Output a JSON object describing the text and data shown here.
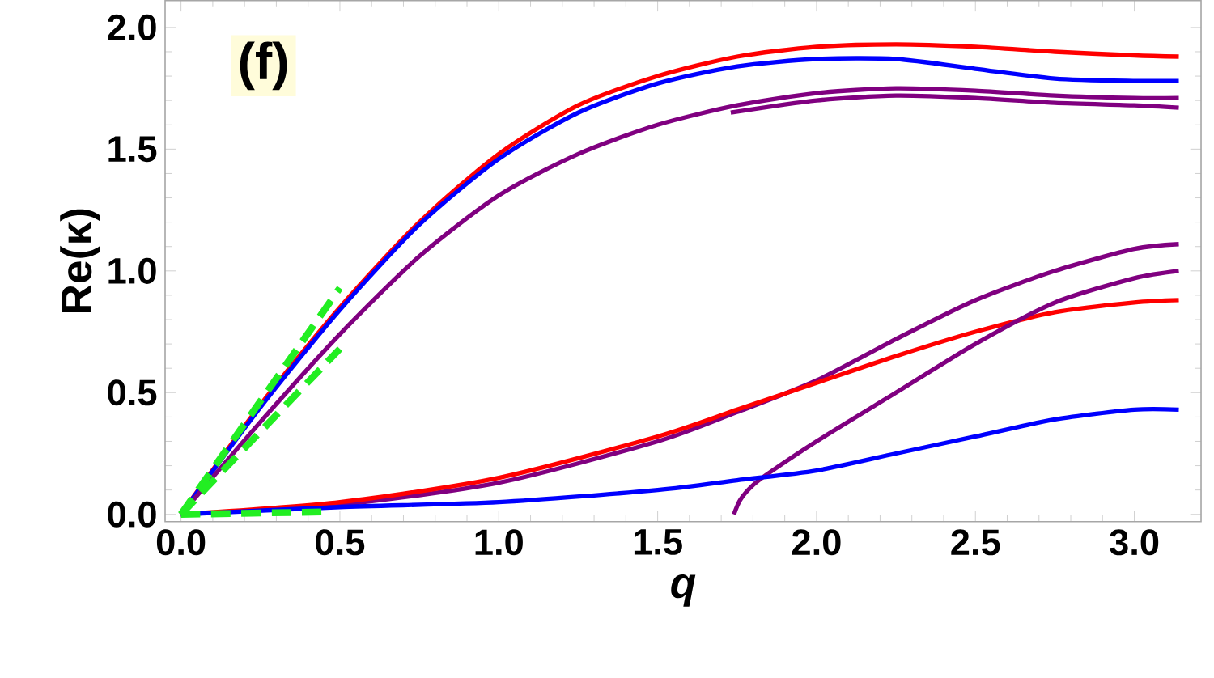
{
  "chart_data": {
    "type": "line",
    "xlabel": "q",
    "ylabel": "Re(κ)",
    "annotations": [
      "(f)"
    ],
    "xlim": [
      -0.05,
      3.21
    ],
    "ylim": [
      -0.03,
      2.11
    ],
    "xticks": [
      {
        "value": 0,
        "label": "0.0"
      },
      {
        "value": 0.5,
        "label": "0.5"
      },
      {
        "value": 1,
        "label": "1.0"
      },
      {
        "value": 1.5,
        "label": "1.5"
      },
      {
        "value": 2,
        "label": "2.0"
      },
      {
        "value": 2.5,
        "label": "2.5"
      },
      {
        "value": 3,
        "label": "3.0"
      }
    ],
    "yticks": [
      {
        "value": 0,
        "label": "0.0"
      },
      {
        "value": 0.5,
        "label": "0.5"
      },
      {
        "value": 1,
        "label": "1.0"
      },
      {
        "value": 1.5,
        "label": "1.5"
      },
      {
        "value": 2,
        "label": "2.0"
      }
    ],
    "grid": false,
    "marker": "none",
    "series": [
      {
        "color": "#ff0000",
        "x": [
          0,
          0.25,
          0.5,
          0.75,
          1.0,
          1.25,
          1.5,
          1.75,
          2.0,
          2.25,
          2.5,
          2.75,
          3.0,
          3.14
        ],
        "values": [
          0,
          0.45,
          0.85,
          1.2,
          1.48,
          1.68,
          1.8,
          1.88,
          1.92,
          1.93,
          1.92,
          1.9,
          1.885,
          1.88
        ]
      },
      {
        "color": "#0000ff",
        "x": [
          0,
          0.25,
          0.5,
          0.75,
          1.0,
          1.25,
          1.5,
          1.75,
          2.0,
          2.25,
          2.5,
          2.75,
          3.0,
          3.14
        ],
        "values": [
          0,
          0.44,
          0.84,
          1.19,
          1.46,
          1.65,
          1.77,
          1.84,
          1.87,
          1.87,
          1.83,
          1.79,
          1.78,
          1.78
        ]
      },
      {
        "color": "#800080",
        "x": [
          0,
          0.25,
          0.5,
          0.75,
          1.0,
          1.25,
          1.5,
          1.75,
          2.0,
          2.25,
          2.5,
          2.75,
          3.0,
          3.14
        ],
        "values": [
          0,
          0.38,
          0.74,
          1.06,
          1.31,
          1.48,
          1.6,
          1.68,
          1.73,
          1.75,
          1.74,
          1.72,
          1.71,
          1.71
        ]
      },
      {
        "color": "#800080",
        "x": [
          1.73,
          2.0,
          2.25,
          2.5,
          2.75,
          3.0,
          3.14
        ],
        "values": [
          1.65,
          1.7,
          1.72,
          1.71,
          1.69,
          1.68,
          1.67
        ]
      },
      {
        "color": "#800080",
        "x": [
          0,
          0.5,
          1.0,
          1.5,
          1.75,
          2.0,
          2.25,
          2.5,
          2.75,
          3.0,
          3.14
        ],
        "values": [
          0,
          0.04,
          0.13,
          0.3,
          0.42,
          0.55,
          0.72,
          0.88,
          1.0,
          1.09,
          1.11
        ]
      },
      {
        "color": "#ff0000",
        "x": [
          0,
          0.5,
          1.0,
          1.5,
          1.75,
          2.0,
          2.25,
          2.5,
          2.75,
          3.0,
          3.14
        ],
        "values": [
          0,
          0.05,
          0.15,
          0.32,
          0.43,
          0.54,
          0.65,
          0.75,
          0.83,
          0.87,
          0.88
        ]
      },
      {
        "color": "#800080",
        "x": [
          1.74,
          1.76,
          1.8,
          1.85,
          2.0,
          2.25,
          2.5,
          2.75,
          3.0,
          3.14
        ],
        "values": [
          0.0,
          0.06,
          0.12,
          0.17,
          0.3,
          0.5,
          0.7,
          0.87,
          0.97,
          1.0
        ]
      },
      {
        "color": "#0000ff",
        "x": [
          0,
          0.5,
          1.0,
          1.5,
          1.75,
          2.0,
          2.25,
          2.5,
          2.75,
          3.0,
          3.14
        ],
        "values": [
          0,
          0.03,
          0.05,
          0.1,
          0.14,
          0.18,
          0.25,
          0.32,
          0.39,
          0.43,
          0.43
        ]
      },
      {
        "color": "#22ee22",
        "line_style": "dashed",
        "x": [
          0,
          0.5
        ],
        "values": [
          0,
          0.93
        ]
      },
      {
        "color": "#22ee22",
        "line_style": "dashed",
        "x": [
          0,
          0.5
        ],
        "values": [
          0,
          0.68
        ]
      },
      {
        "color": "#22ee22",
        "line_style": "dashed",
        "x": [
          0,
          0.45
        ],
        "values": [
          0,
          0.01
        ]
      }
    ]
  }
}
